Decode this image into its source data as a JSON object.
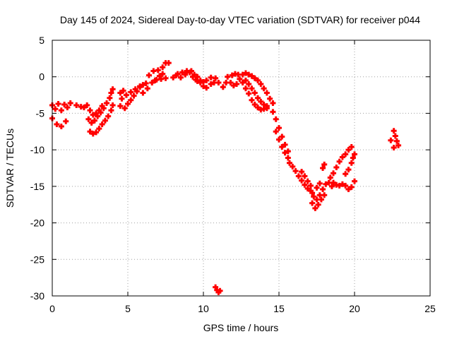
{
  "chart_data": {
    "type": "scatter",
    "title": "Day 145 of 2024, Sidereal Day-to-day VTEC variation (SDTVAR) for receiver p044",
    "xlabel": "GPS time / hours",
    "ylabel": "SDTVAR / TECUs",
    "xlim": [
      0,
      25
    ],
    "ylim": [
      -30,
      5
    ],
    "xticks": [
      0,
      5,
      10,
      15,
      20,
      25
    ],
    "yticks": [
      5,
      0,
      -5,
      -10,
      -15,
      -20,
      -25,
      -30
    ],
    "grid": true,
    "legend": "none",
    "series": [
      {
        "name": "p044",
        "marker_color": "#ff0000",
        "points": [
          [
            0.0,
            -3.9
          ],
          [
            0.2,
            -4.4
          ],
          [
            0.4,
            -3.7
          ],
          [
            0.6,
            -4.6
          ],
          [
            0.8,
            -3.8
          ],
          [
            1.0,
            -4.2
          ],
          [
            1.2,
            -3.6
          ],
          [
            0.0,
            -5.7
          ],
          [
            0.3,
            -6.5
          ],
          [
            0.6,
            -6.8
          ],
          [
            0.9,
            -6.1
          ],
          [
            1.6,
            -3.9
          ],
          [
            1.9,
            -4.1
          ],
          [
            2.1,
            -4.2
          ],
          [
            2.3,
            -3.9
          ],
          [
            2.5,
            -4.6
          ],
          [
            2.7,
            -5.2
          ],
          [
            2.9,
            -5.0
          ],
          [
            3.1,
            -4.6
          ],
          [
            3.3,
            -4.0
          ],
          [
            2.4,
            -5.8
          ],
          [
            2.6,
            -6.3
          ],
          [
            2.8,
            -6.0
          ],
          [
            3.0,
            -5.4
          ],
          [
            3.2,
            -4.9
          ],
          [
            3.4,
            -4.3
          ],
          [
            3.6,
            -3.6
          ],
          [
            3.8,
            -2.9
          ],
          [
            3.9,
            -2.2
          ],
          [
            4.0,
            -1.7
          ],
          [
            2.5,
            -7.5
          ],
          [
            2.7,
            -7.8
          ],
          [
            2.9,
            -7.6
          ],
          [
            3.1,
            -7.1
          ],
          [
            3.3,
            -6.5
          ],
          [
            3.5,
            -6.0
          ],
          [
            3.7,
            -5.4
          ],
          [
            3.9,
            -4.6
          ],
          [
            4.0,
            -3.9
          ],
          [
            4.5,
            -2.2
          ],
          [
            4.7,
            -1.9
          ],
          [
            4.5,
            -4.0
          ],
          [
            4.8,
            -4.3
          ],
          [
            5.0,
            -3.7
          ],
          [
            5.2,
            -3.2
          ],
          [
            5.4,
            -2.6
          ],
          [
            5.6,
            -2.0
          ],
          [
            5.8,
            -1.4
          ],
          [
            6.0,
            -1.1
          ],
          [
            6.2,
            -0.9
          ],
          [
            4.6,
            -3.0
          ],
          [
            4.9,
            -2.5
          ],
          [
            5.2,
            -2.1
          ],
          [
            5.5,
            -1.7
          ],
          [
            5.8,
            -1.3
          ],
          [
            6.0,
            -2.2
          ],
          [
            6.3,
            -1.6
          ],
          [
            6.6,
            -0.8
          ],
          [
            6.9,
            -0.4
          ],
          [
            7.2,
            -0.3
          ],
          [
            6.4,
            0.2
          ],
          [
            6.7,
            0.8
          ],
          [
            7.0,
            0.9
          ],
          [
            7.3,
            1.3
          ],
          [
            7.5,
            1.9
          ],
          [
            7.7,
            1.9
          ],
          [
            6.8,
            -0.5
          ],
          [
            7.1,
            0.1
          ],
          [
            7.3,
            0.4
          ],
          [
            7.5,
            -0.2
          ],
          [
            8.0,
            -0.1
          ],
          [
            8.3,
            0.4
          ],
          [
            8.6,
            0.6
          ],
          [
            8.9,
            0.8
          ],
          [
            9.2,
            0.8
          ],
          [
            9.4,
            0.3
          ],
          [
            9.6,
            0.0
          ],
          [
            9.8,
            -0.5
          ],
          [
            10.0,
            -0.7
          ],
          [
            8.2,
            0.2
          ],
          [
            8.5,
            -0.1
          ],
          [
            8.8,
            0.3
          ],
          [
            9.1,
            0.6
          ],
          [
            9.3,
            0.0
          ],
          [
            9.6,
            -0.6
          ],
          [
            9.5,
            -0.4
          ],
          [
            9.8,
            -0.8
          ],
          [
            10.0,
            -1.3
          ],
          [
            10.2,
            -1.5
          ],
          [
            10.5,
            -1.0
          ],
          [
            10.7,
            -0.8
          ],
          [
            10.2,
            -0.5
          ],
          [
            10.5,
            -0.1
          ],
          [
            10.8,
            -0.2
          ],
          [
            11.0,
            -0.8
          ],
          [
            11.3,
            -1.4
          ],
          [
            11.5,
            -0.8
          ],
          [
            11.8,
            -0.8
          ],
          [
            12.0,
            -1.2
          ],
          [
            12.2,
            -1.0
          ],
          [
            11.6,
            0.0
          ],
          [
            11.9,
            0.2
          ],
          [
            12.1,
            0.4
          ],
          [
            12.3,
            0.3
          ],
          [
            12.6,
            0.3
          ],
          [
            12.8,
            0.5
          ],
          [
            13.0,
            0.3
          ],
          [
            13.2,
            0.1
          ],
          [
            12.4,
            -0.3
          ],
          [
            12.6,
            -0.8
          ],
          [
            12.8,
            -1.6
          ],
          [
            13.0,
            -2.3
          ],
          [
            13.2,
            -3.2
          ],
          [
            13.4,
            -3.8
          ],
          [
            13.6,
            -4.2
          ],
          [
            13.8,
            -4.5
          ],
          [
            14.0,
            -4.4
          ],
          [
            14.2,
            -4.3
          ],
          [
            12.8,
            -0.5
          ],
          [
            13.0,
            -1.0
          ],
          [
            13.2,
            -1.6
          ],
          [
            13.4,
            -2.2
          ],
          [
            13.6,
            -2.9
          ],
          [
            13.8,
            -3.4
          ],
          [
            14.0,
            -3.8
          ],
          [
            14.2,
            -4.0
          ],
          [
            13.4,
            -0.2
          ],
          [
            13.6,
            -0.5
          ],
          [
            13.8,
            -1.0
          ],
          [
            14.0,
            -1.6
          ],
          [
            14.2,
            -2.2
          ],
          [
            14.4,
            -3.0
          ],
          [
            14.6,
            -3.6
          ],
          [
            14.6,
            -4.8
          ],
          [
            14.8,
            -5.8
          ],
          [
            15.0,
            -7.0
          ],
          [
            15.2,
            -8.2
          ],
          [
            15.4,
            -9.3
          ],
          [
            15.6,
            -10.2
          ],
          [
            14.8,
            -7.5
          ],
          [
            15.0,
            -8.6
          ],
          [
            15.2,
            -9.6
          ],
          [
            15.4,
            -10.4
          ],
          [
            15.6,
            -11.1
          ],
          [
            15.7,
            -11.8
          ],
          [
            15.9,
            -12.3
          ],
          [
            16.1,
            -12.9
          ],
          [
            16.3,
            -13.6
          ],
          [
            16.5,
            -14.2
          ],
          [
            16.7,
            -14.8
          ],
          [
            16.9,
            -15.3
          ],
          [
            17.1,
            -15.6
          ],
          [
            17.2,
            -15.9
          ],
          [
            16.5,
            -13.0
          ],
          [
            16.7,
            -13.6
          ],
          [
            16.9,
            -14.3
          ],
          [
            17.1,
            -14.9
          ],
          [
            17.2,
            -17.3
          ],
          [
            17.4,
            -18.0
          ],
          [
            17.6,
            -17.5
          ],
          [
            17.8,
            -16.8
          ],
          [
            18.0,
            -16.2
          ],
          [
            17.3,
            -16.4
          ],
          [
            17.5,
            -16.8
          ],
          [
            17.7,
            -16.2
          ],
          [
            17.9,
            -15.4
          ],
          [
            18.1,
            -14.7
          ],
          [
            18.3,
            -14.5
          ],
          [
            18.5,
            -15.0
          ],
          [
            17.5,
            -15.2
          ],
          [
            17.7,
            -14.6
          ],
          [
            17.9,
            -12.5
          ],
          [
            18.0,
            -12.0
          ],
          [
            18.4,
            -13.8
          ],
          [
            18.6,
            -13.2
          ],
          [
            18.8,
            -12.4
          ],
          [
            19.0,
            -11.6
          ],
          [
            19.2,
            -11.0
          ],
          [
            19.4,
            -10.6
          ],
          [
            19.6,
            -10.0
          ],
          [
            19.8,
            -9.6
          ],
          [
            18.6,
            -14.5
          ],
          [
            18.8,
            -14.8
          ],
          [
            19.0,
            -14.9
          ],
          [
            19.2,
            -14.7
          ],
          [
            19.4,
            -14.9
          ],
          [
            19.6,
            -15.4
          ],
          [
            19.8,
            -15.1
          ],
          [
            20.0,
            -14.3
          ],
          [
            19.4,
            -13.3
          ],
          [
            19.6,
            -12.7
          ],
          [
            19.8,
            -11.8
          ],
          [
            19.9,
            -11.1
          ],
          [
            20.0,
            -10.6
          ],
          [
            22.6,
            -7.4
          ],
          [
            22.7,
            -8.1
          ],
          [
            22.8,
            -8.8
          ],
          [
            22.9,
            -9.4
          ],
          [
            22.6,
            -9.7
          ],
          [
            22.4,
            -8.7
          ],
          [
            10.8,
            -28.8
          ],
          [
            10.9,
            -29.2
          ],
          [
            11.0,
            -29.5
          ],
          [
            11.1,
            -29.3
          ]
        ]
      }
    ]
  }
}
